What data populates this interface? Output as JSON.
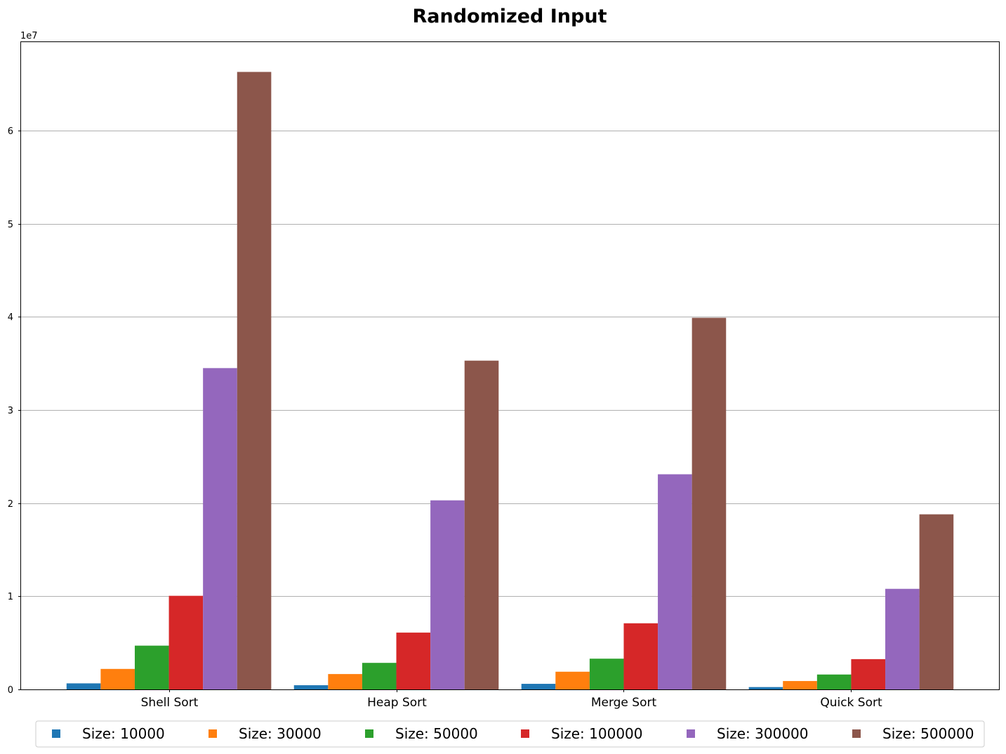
{
  "chart_data": {
    "type": "bar",
    "title": "Randomized Input",
    "xlabel": "",
    "ylabel": "",
    "y_offset_label": "1e7",
    "y_scale": 10000000,
    "ylim": [
      0,
      69500000
    ],
    "yticks": [
      0,
      10000000,
      20000000,
      30000000,
      40000000,
      50000000,
      60000000
    ],
    "ytick_labels": [
      "0",
      "1",
      "2",
      "3",
      "4",
      "5",
      "6"
    ],
    "grid": "y",
    "legend_placement": "bottom",
    "categories": [
      "Shell Sort",
      "Heap Sort",
      "Merge Sort",
      "Quick Sort"
    ],
    "series": [
      {
        "name": "Size: 10000",
        "color": "#1f77b4",
        "values": [
          650000,
          450000,
          600000,
          250000
        ]
      },
      {
        "name": "Size: 30000",
        "color": "#ff7f0e",
        "values": [
          2200000,
          1650000,
          1900000,
          900000
        ]
      },
      {
        "name": "Size: 50000",
        "color": "#2ca02c",
        "values": [
          4700000,
          2850000,
          3300000,
          1600000
        ]
      },
      {
        "name": "Size: 100000",
        "color": "#d62728",
        "values": [
          10050000,
          6100000,
          7100000,
          3250000
        ]
      },
      {
        "name": "Size: 300000",
        "color": "#9467bd",
        "values": [
          34500000,
          20300000,
          23100000,
          10800000
        ]
      },
      {
        "name": "Size: 500000",
        "color": "#8c564b",
        "values": [
          66300000,
          35300000,
          39900000,
          18800000
        ]
      }
    ]
  }
}
